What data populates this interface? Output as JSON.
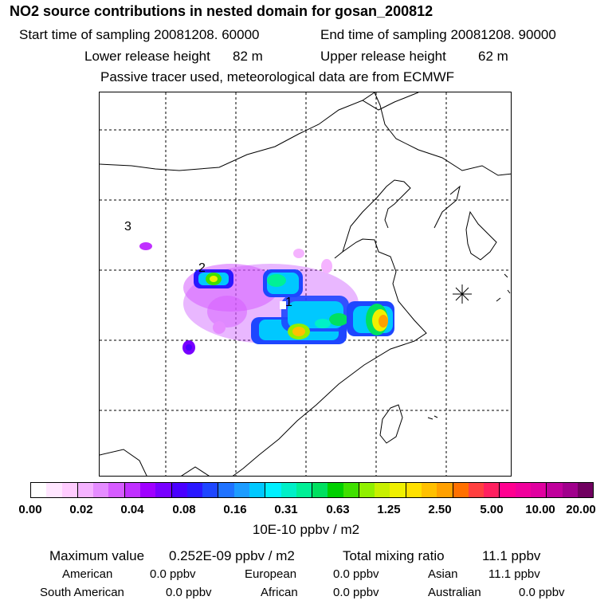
{
  "header": {
    "title": "NO2 source contributions in nested domain for gosan_200812",
    "start_label": "Start time of sampling 20081208. 60000",
    "end_label": "End time of sampling 20081208. 90000",
    "lower_label": "Lower release height",
    "lower_value": "82 m",
    "upper_label": "Upper release height",
    "upper_value": "62 m",
    "subtitle": "Passive tracer used, meteorological data are from ECMWF"
  },
  "map": {
    "markers": [
      "1",
      "2",
      "3"
    ],
    "receptor_icon": "asterisk-icon"
  },
  "colorbar": {
    "colors": [
      "#ffffff",
      "#ffe6ff",
      "#ffccff",
      "#f5b3ff",
      "#e58cff",
      "#d65cff",
      "#c030ff",
      "#a000ff",
      "#7800ff",
      "#4a00ff",
      "#2a18ff",
      "#1e46ff",
      "#1f72ff",
      "#1c9cff",
      "#00c8ff",
      "#00f0ff",
      "#00f0c8",
      "#00f096",
      "#00e060",
      "#00d000",
      "#40e000",
      "#90f000",
      "#c8f000",
      "#f0f000",
      "#ffe000",
      "#ffc000",
      "#ffa000",
      "#ff7000",
      "#ff4040",
      "#ff2060",
      "#ff0090",
      "#f0009c",
      "#e000a0",
      "#c0009c",
      "#a0008c",
      "#700060"
    ],
    "ticks": [
      "0.00",
      "0.02",
      "0.04",
      "0.08",
      "0.16",
      "0.31",
      "0.63",
      "1.25",
      "2.50",
      "5.00",
      "10.00",
      "20.00"
    ],
    "unit": "10E-10 ppbv / m2"
  },
  "summary": {
    "max_label": "Maximum value",
    "max_value": "0.252E-09 ppbv / m2",
    "total_label": "Total mixing ratio",
    "total_value": "11.1 ppbv",
    "sources": [
      {
        "name": "American",
        "value": "0.0 ppbv"
      },
      {
        "name": "European",
        "value": "0.0 ppbv"
      },
      {
        "name": "Asian",
        "value": "11.1 ppbv"
      },
      {
        "name": "South American",
        "value": "0.0 ppbv"
      },
      {
        "name": "African",
        "value": "0.0 ppbv"
      },
      {
        "name": "Australian",
        "value": "0.0 ppbv"
      }
    ]
  }
}
